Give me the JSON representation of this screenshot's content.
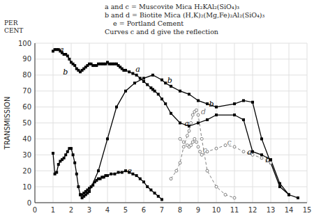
{
  "chart_data": {
    "type": "line",
    "ylabel": "TRANSMISSION",
    "ylabel_top": "PER\nCENT",
    "xlim": [
      0,
      15
    ],
    "ylim": [
      0,
      100
    ],
    "xticks": [
      0,
      1,
      2,
      3,
      4,
      5,
      6,
      7,
      8,
      9,
      10,
      11,
      12,
      13,
      14,
      15
    ],
    "yticks": [
      0,
      10,
      20,
      30,
      40,
      50,
      60,
      70,
      80,
      90,
      100
    ],
    "grid": true,
    "notes": [
      "a and c = Muscovite Mica H₂KAl₂(SiO₄)₃",
      "b and d = Biotite Mica (H,K)₂(Mg,Fe)₂Al₂(SiO₄)₃",
      "    e = Portland Cement",
      "Curves c and d give the reflection"
    ],
    "series": [
      {
        "name": "a",
        "color": "#000000",
        "line_style": "solid",
        "marker": "square",
        "x": [
          1.0,
          1.1,
          1.2,
          1.3,
          1.4,
          1.5,
          1.6,
          1.7,
          1.8,
          1.9,
          2.0,
          2.1,
          2.2,
          2.3,
          2.4,
          2.5,
          2.6,
          2.7,
          2.8,
          2.9,
          3.0,
          3.1,
          3.2,
          3.3,
          3.4,
          3.5,
          3.6,
          3.7,
          3.8,
          3.9,
          4.0,
          4.1,
          4.2,
          4.3,
          4.4,
          4.5,
          4.6,
          4.7,
          4.8,
          4.9,
          5.0,
          5.2,
          5.4,
          5.6,
          5.8,
          6.0,
          6.2,
          6.4,
          6.5,
          6.6,
          6.8,
          7.0,
          7.2,
          7.5,
          8.0,
          8.5,
          9.0,
          9.5,
          10.0,
          11.0,
          11.5,
          12.0,
          12.5,
          13.0,
          13.5,
          14.0
        ],
        "values": [
          95,
          96,
          96,
          96,
          95,
          94,
          93,
          93,
          92,
          90,
          88,
          87,
          86,
          84,
          83,
          82,
          83,
          84,
          85,
          86,
          87,
          87,
          86,
          86,
          86,
          87,
          87,
          87,
          87,
          87,
          88,
          87,
          87,
          87,
          87,
          87,
          86,
          85,
          84,
          83,
          83,
          82,
          81,
          80,
          78,
          76,
          74,
          72,
          71,
          70,
          68,
          65,
          62,
          56,
          50,
          48,
          50,
          52,
          55,
          55,
          52,
          32,
          30,
          27,
          12,
          5
        ]
      },
      {
        "name": "b",
        "color": "#000000",
        "line_style": "solid",
        "marker": "square",
        "x": [
          1.0,
          1.1,
          1.2,
          1.3,
          1.4,
          1.5,
          1.6,
          1.7,
          1.8,
          1.9,
          2.0,
          2.1,
          2.2,
          2.3,
          2.4,
          2.5,
          2.6,
          2.7,
          2.8,
          2.9,
          3.0,
          3.5,
          4.0,
          4.5,
          5.0,
          5.5,
          6.0,
          6.5,
          7.0,
          7.2,
          7.5,
          8.0,
          8.5,
          9.0,
          9.5,
          10.0,
          11.0,
          11.5,
          12.0,
          12.5,
          13.0,
          13.5,
          14.0,
          14.5
        ],
        "values": [
          31,
          18,
          19,
          24,
          26,
          27,
          28,
          30,
          32,
          34,
          34,
          30,
          25,
          18,
          10,
          5,
          3,
          4,
          5,
          6,
          7,
          20,
          40,
          60,
          70,
          75,
          78,
          80,
          77,
          75,
          73,
          70,
          68,
          64,
          62,
          60,
          62,
          64,
          63,
          40,
          25,
          10,
          5,
          3
        ]
      },
      {
        "name": "e",
        "color": "#000000",
        "line_style": "solid",
        "marker": "square",
        "x": [
          2.5,
          2.6,
          2.7,
          2.8,
          2.9,
          3.0,
          3.1,
          3.2,
          3.3,
          3.4,
          3.5,
          3.6,
          3.7,
          3.8,
          3.9,
          4.0,
          4.2,
          4.4,
          4.6,
          4.8,
          5.0,
          5.2,
          5.4,
          5.6,
          5.8,
          6.0,
          6.2,
          6.4,
          6.6,
          6.8,
          7.0
        ],
        "values": [
          5,
          5,
          6,
          7,
          8,
          9,
          10,
          11,
          13,
          14,
          15,
          15,
          16,
          16,
          17,
          17,
          18,
          18,
          19,
          19,
          20,
          19,
          18,
          17,
          15,
          13,
          10,
          8,
          6,
          4,
          2
        ]
      },
      {
        "name": "c",
        "color": "#808080",
        "line_style": "dashed",
        "marker": "circle",
        "x": [
          8.0,
          8.2,
          8.4,
          8.5,
          8.6,
          8.7,
          8.8,
          8.9,
          9.0,
          9.1,
          9.2,
          9.5,
          10.0,
          10.5,
          11.0,
          11.5,
          12.0,
          12.5,
          13.0
        ],
        "values": [
          40,
          38,
          36,
          35,
          36,
          38,
          40,
          38,
          35,
          32,
          30,
          32,
          34,
          36,
          35,
          32,
          30,
          28,
          25
        ]
      },
      {
        "name": "d",
        "color": "#808080",
        "line_style": "dashed",
        "marker": "circle",
        "x": [
          7.5,
          7.8,
          8.0,
          8.2,
          8.4,
          8.5,
          8.6,
          8.7,
          8.8,
          8.9,
          9.0,
          9.2,
          9.5,
          10.0,
          10.5,
          11.0
        ],
        "values": [
          15,
          20,
          25,
          35,
          42,
          45,
          50,
          55,
          57,
          58,
          55,
          40,
          20,
          10,
          5,
          3
        ]
      }
    ],
    "annotations": [
      {
        "text": "a",
        "x": 1.35,
        "y": 96
      },
      {
        "text": "a",
        "x": 5.55,
        "y": 84
      },
      {
        "text": "a",
        "x": 8.25,
        "y": 50
      },
      {
        "text": "a",
        "x": 11.7,
        "y": 32
      },
      {
        "text": "b",
        "x": 1.55,
        "y": 82
      },
      {
        "text": "b",
        "x": 7.3,
        "y": 77
      },
      {
        "text": "b",
        "x": 9.6,
        "y": 62
      },
      {
        "text": "b",
        "x": 12.7,
        "y": 27
      },
      {
        "text": "e",
        "x": 5.1,
        "y": 20
      },
      {
        "text": "c",
        "x": 9.25,
        "y": 33
      },
      {
        "text": "c",
        "x": 10.6,
        "y": 38
      },
      {
        "text": "d",
        "x": 9.15,
        "y": 57
      }
    ]
  }
}
